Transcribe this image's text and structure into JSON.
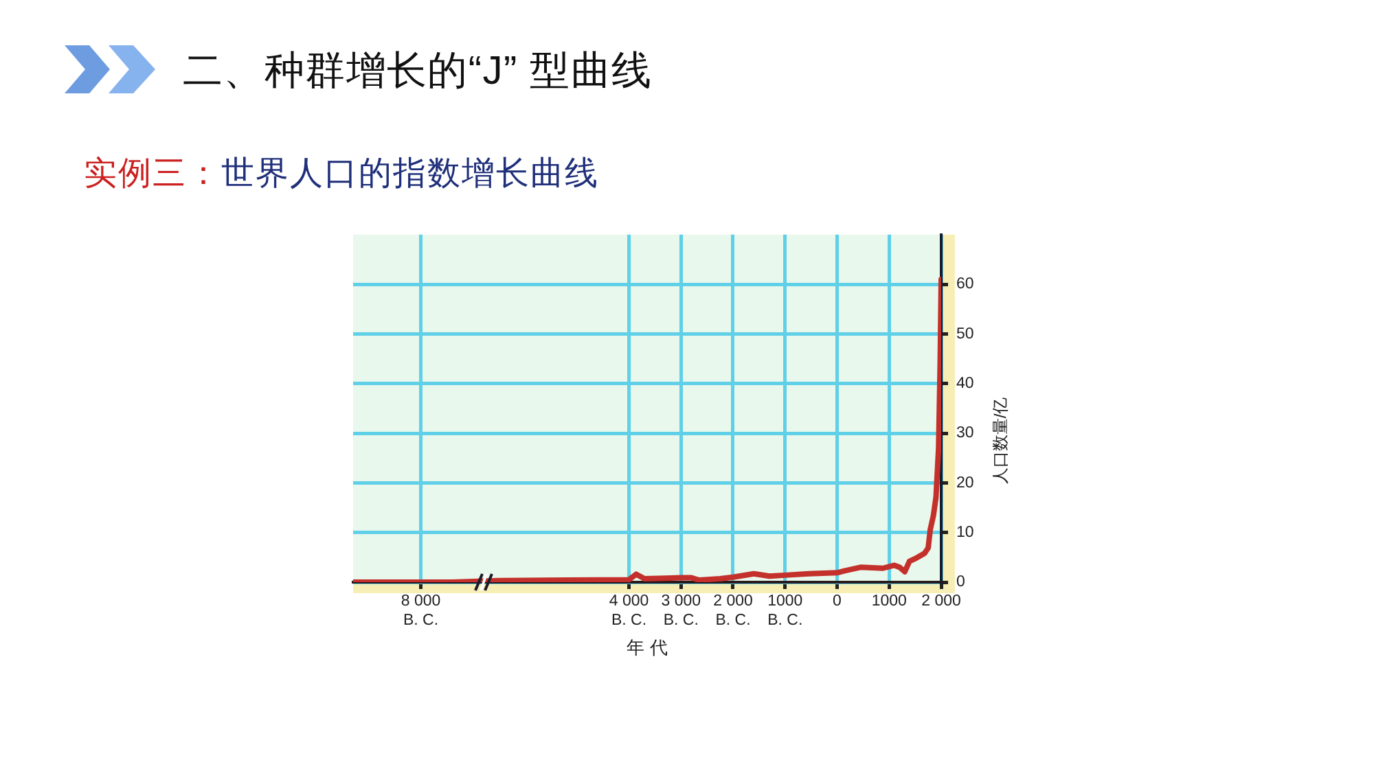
{
  "chart_data": {
    "type": "line",
    "title": "二、种群增长的“J” 型曲线",
    "subtitle": "世界人口的指数增长曲线",
    "annotations": [
      "实例三："
    ],
    "xlabel": "年 代",
    "ylabel": "人口数量/亿",
    "x": [
      -9300,
      -8000,
      -7400,
      -6500,
      -5200,
      -4000,
      -3860,
      -3700,
      -3300,
      -3000,
      -2800,
      -2650,
      -2250,
      -2000,
      -1600,
      -1300,
      -1000,
      -550,
      0,
      150,
      450,
      670,
      880,
      1100,
      1200,
      1300,
      1390,
      1530,
      1680,
      1750,
      1790,
      1850,
      1900,
      1950,
      1980,
      2000
    ],
    "values": [
      0,
      0,
      0,
      0.3,
      0.4,
      0.5,
      1.6,
      0.7,
      0.8,
      0.9,
      0.9,
      0.4,
      0.7,
      1.0,
      1.7,
      1.2,
      1.4,
      1.7,
      1.9,
      2.3,
      3.0,
      2.9,
      2.8,
      3.4,
      3.0,
      2.1,
      4.2,
      4.9,
      5.8,
      6.9,
      10.6,
      13.4,
      17.1,
      27,
      44,
      61
    ],
    "color": "#c4302b",
    "xlim": [
      -9300,
      2000
    ],
    "xticks": [
      {
        "value": -8000,
        "label": "8 000\nB. C."
      },
      {
        "value": -4000,
        "label": "4 000\nB. C."
      },
      {
        "value": -3000,
        "label": "3 000\nB. C."
      },
      {
        "value": -2000,
        "label": "2 000\nB. C."
      },
      {
        "value": -1000,
        "label": "1000\nB. C."
      },
      0,
      1000,
      {
        "value": 2000,
        "label": "2 000"
      }
    ],
    "ylim": [
      0,
      70
    ],
    "yticks": [
      0,
      10,
      20,
      30,
      40,
      50,
      60
    ],
    "grid": true,
    "marker": "none",
    "line_style": "solid"
  }
}
